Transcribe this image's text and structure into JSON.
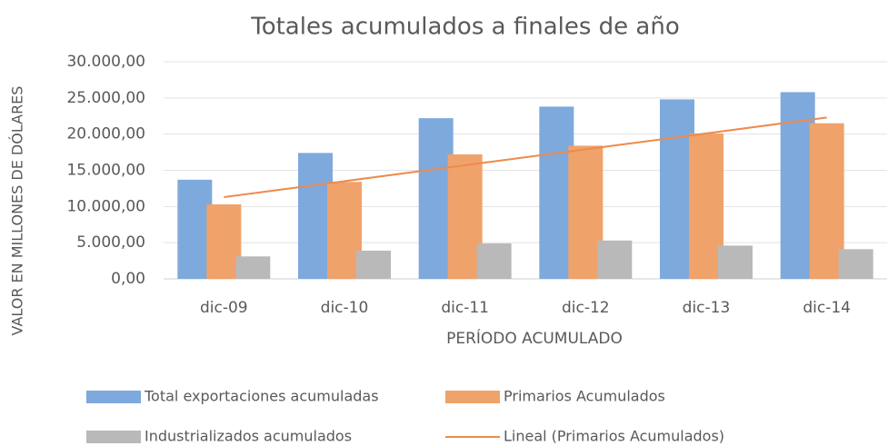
{
  "chart_data": {
    "type": "bar",
    "title": "Totales acumulados a finales de año",
    "x_label": "PERÍODO ACUMULADO",
    "y_label": "VALOR EN MILLONES DE DÓLARES",
    "categories": [
      "dic-09",
      "dic-10",
      "dic-11",
      "dic-12",
      "dic-13",
      "dic-14"
    ],
    "series": [
      {
        "name": "Total exportaciones acumuladas",
        "color": "#7ea9dc",
        "values": [
          13700,
          17400,
          22200,
          23800,
          24800,
          25800
        ]
      },
      {
        "name": "Primarios Acumulados",
        "color": "#f0a26b",
        "values": [
          10300,
          13400,
          17200,
          18400,
          20100,
          21500
        ]
      },
      {
        "name": "Industrializados acumulados",
        "color": "#b9b9b9",
        "values": [
          3100,
          3900,
          4900,
          5300,
          4600,
          4100
        ]
      },
      {
        "name": "Lineal (Primarios Acumulados)",
        "color": "#ed8a4c",
        "type": "line",
        "values": [
          11300,
          13500,
          15700,
          17900,
          20100,
          22300
        ]
      }
    ],
    "ylim": [
      0,
      30000
    ],
    "yticks": [
      {
        "value": 0,
        "label": "0,00"
      },
      {
        "value": 5000,
        "label": "5.000,00"
      },
      {
        "value": 10000,
        "label": "10.000,00"
      },
      {
        "value": 15000,
        "label": "15.000,00"
      },
      {
        "value": 20000,
        "label": "20.000,00"
      },
      {
        "value": 25000,
        "label": "25.000,00"
      },
      {
        "value": 30000,
        "label": "30.000,00"
      }
    ],
    "grid": true
  }
}
